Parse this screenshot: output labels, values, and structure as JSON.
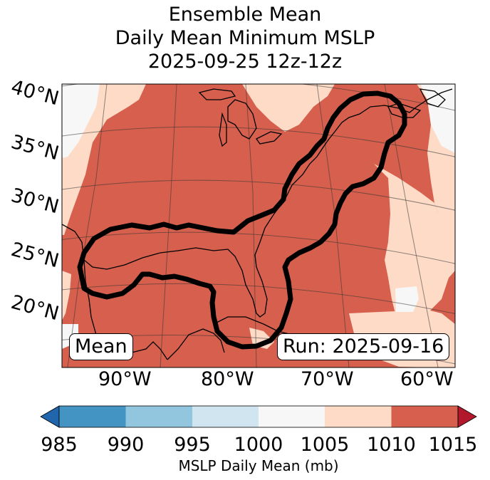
{
  "title": {
    "line1": "Ensemble Mean",
    "line2": "Daily Mean Minimum MSLP",
    "line3": "2025-09-25 12z-12z"
  },
  "map": {
    "latitude_labels": [
      "40°N",
      "35°N",
      "30°N",
      "25°N",
      "20°N"
    ],
    "longitude_labels": [
      "90°W",
      "80°W",
      "70°W",
      "60°W"
    ],
    "left_box": "Mean",
    "right_box": "Run: 2025-09-16",
    "field_colors": {
      "1005-1010": "#fddbc7",
      "1010-1015": "#d6604d",
      "1000-1005": "#f7f7f7",
      "land_outline": "#000000",
      "contour": "#000000"
    }
  },
  "colorbar": {
    "ticks": [
      "985",
      "990",
      "995",
      "1000",
      "1005",
      "1010",
      "1015"
    ],
    "label": "MSLP Daily Mean (mb)",
    "colors": [
      "#2166ac",
      "#4393c3",
      "#92c5de",
      "#d1e5f0",
      "#f7f7f7",
      "#fddbc7",
      "#d6604d",
      "#b2182b"
    ]
  }
}
